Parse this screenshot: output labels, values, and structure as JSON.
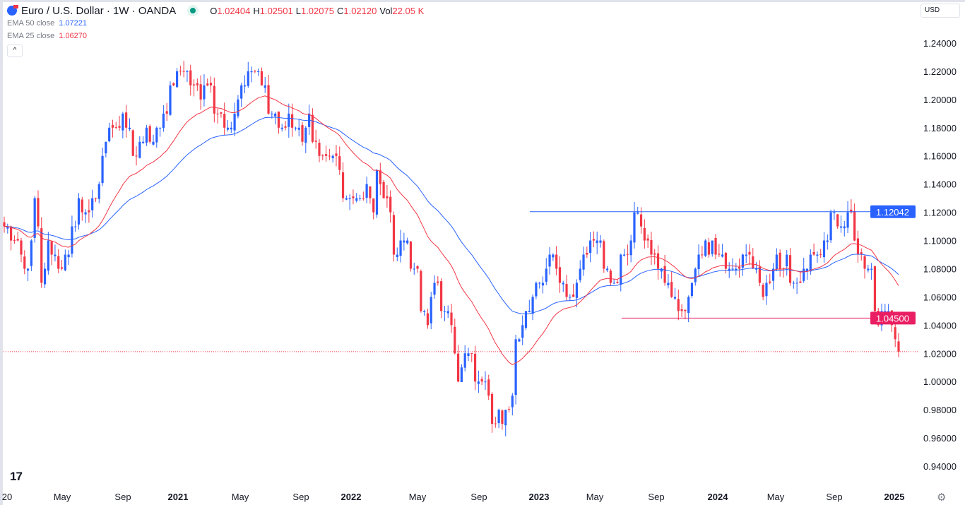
{
  "header": {
    "symbol": "Euro / U.S. Dollar · 1W · OANDA",
    "ohlc": [
      {
        "k": "O",
        "v": "1.02404"
      },
      {
        "k": "H",
        "v": "1.02501"
      },
      {
        "k": "L",
        "v": "1.02075"
      },
      {
        "k": "C",
        "v": "1.02120"
      },
      {
        "k": "Vol",
        "v": "22.05 K"
      }
    ],
    "ema50": {
      "label": "EMA 50 close",
      "value": "1.07221"
    },
    "ema25": {
      "label": "EMA 25 close",
      "value": "1.06270"
    },
    "collapse": "^"
  },
  "currency": "USD",
  "logo": "TV",
  "colors": {
    "up": "#2962ff",
    "down": "#f23645",
    "ema50": "#2962ff",
    "ema25": "#f23645",
    "res": "#2962ff",
    "sup": "#e91e63"
  },
  "chart_data": {
    "type": "candlestick",
    "interval": "1W",
    "ylim": [
      0.93,
      1.25
    ],
    "y_ticks": [
      "1.24000",
      "1.22000",
      "1.20000",
      "1.18000",
      "1.16000",
      "1.14000",
      "1.12000",
      "1.10000",
      "1.08000",
      "1.06000",
      "1.04000",
      "1.02000",
      "1.00000",
      "0.98000",
      "0.96000",
      "0.94000"
    ],
    "x_ticks": [
      "20",
      "May",
      "Sep",
      "2021",
      "May",
      "Sep",
      "2022",
      "May",
      "Sep",
      "2023",
      "May",
      "Sep",
      "2024",
      "May",
      "Sep",
      "2025"
    ],
    "horizontal_lines": [
      {
        "value": 1.12042,
        "label": "1.12042",
        "color": "#2962ff"
      },
      {
        "value": 1.045,
        "label": "1.04500",
        "color": "#e91e63"
      }
    ],
    "last_price": 1.0212,
    "weekly_closes": [
      1.11,
      1.11,
      1.1,
      1.1,
      1.1,
      1.09,
      1.08,
      1.08,
      1.1,
      1.13,
      1.11,
      1.07,
      1.08,
      1.1,
      1.09,
      1.09,
      1.08,
      1.08,
      1.09,
      1.09,
      1.11,
      1.11,
      1.13,
      1.12,
      1.12,
      1.12,
      1.13,
      1.13,
      1.14,
      1.16,
      1.17,
      1.18,
      1.18,
      1.18,
      1.18,
      1.19,
      1.18,
      1.18,
      1.16,
      1.16,
      1.17,
      1.17,
      1.18,
      1.17,
      1.17,
      1.18,
      1.18,
      1.19,
      1.19,
      1.21,
      1.21,
      1.22,
      1.22,
      1.22,
      1.22,
      1.21,
      1.21,
      1.21,
      1.2,
      1.21,
      1.21,
      1.21,
      1.19,
      1.19,
      1.19,
      1.18,
      1.18,
      1.18,
      1.19,
      1.2,
      1.21,
      1.21,
      1.22,
      1.22,
      1.22,
      1.22,
      1.21,
      1.21,
      1.19,
      1.19,
      1.19,
      1.18,
      1.18,
      1.18,
      1.19,
      1.18,
      1.18,
      1.18,
      1.17,
      1.18,
      1.19,
      1.17,
      1.17,
      1.16,
      1.16,
      1.16,
      1.16,
      1.16,
      1.16,
      1.15,
      1.13,
      1.13,
      1.13,
      1.13,
      1.13,
      1.13,
      1.13,
      1.14,
      1.13,
      1.12,
      1.15,
      1.14,
      1.13,
      1.13,
      1.12,
      1.09,
      1.09,
      1.1,
      1.1,
      1.1,
      1.08,
      1.08,
      1.08,
      1.05,
      1.05,
      1.04,
      1.06,
      1.07,
      1.07,
      1.05,
      1.05,
      1.05,
      1.04,
      1.02,
      1.0,
      1.01,
      1.02,
      1.02,
      1.02,
      1.0,
      1.0,
      1.0,
      1.0,
      0.99,
      0.97,
      0.97,
      0.98,
      0.97,
      0.98,
      0.98,
      0.99,
      1.03,
      1.03,
      1.04,
      1.05,
      1.05,
      1.06,
      1.07,
      1.07,
      1.07,
      1.08,
      1.09,
      1.09,
      1.08,
      1.07,
      1.07,
      1.06,
      1.06,
      1.06,
      1.07,
      1.08,
      1.09,
      1.09,
      1.1,
      1.1,
      1.1,
      1.1,
      1.08,
      1.08,
      1.07,
      1.07,
      1.07,
      1.09,
      1.09,
      1.09,
      1.1,
      1.12,
      1.12,
      1.11,
      1.1,
      1.1,
      1.09,
      1.09,
      1.08,
      1.08,
      1.07,
      1.07,
      1.06,
      1.06,
      1.05,
      1.05,
      1.05,
      1.06,
      1.07,
      1.08,
      1.09,
      1.09,
      1.1,
      1.09,
      1.1,
      1.09,
      1.09,
      1.09,
      1.08,
      1.08,
      1.08,
      1.08,
      1.08,
      1.09,
      1.09,
      1.09,
      1.08,
      1.08,
      1.07,
      1.06,
      1.07,
      1.07,
      1.08,
      1.09,
      1.08,
      1.08,
      1.09,
      1.07,
      1.07,
      1.07,
      1.07,
      1.08,
      1.08,
      1.09,
      1.09,
      1.09,
      1.09,
      1.1,
      1.1,
      1.12,
      1.12,
      1.11,
      1.11,
      1.11,
      1.12,
      1.12,
      1.1,
      1.09,
      1.09,
      1.08,
      1.08,
      1.08,
      1.05,
      1.04,
      1.05,
      1.05,
      1.05,
      1.04,
      1.03,
      1.0212
    ]
  }
}
